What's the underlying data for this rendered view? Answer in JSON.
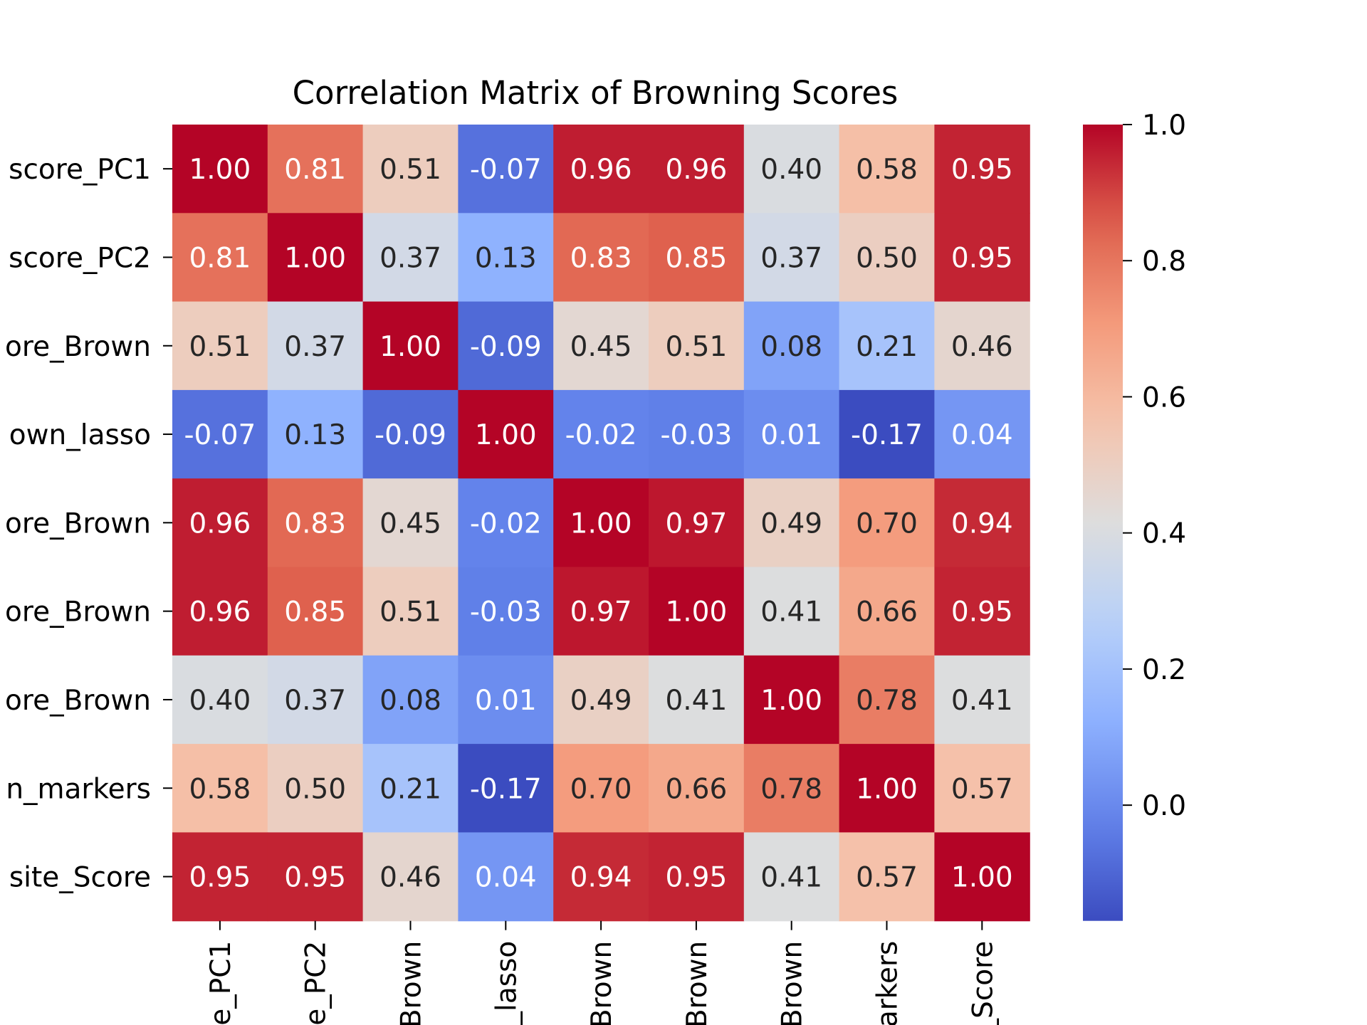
{
  "chart_data": {
    "type": "heatmap",
    "title": "Correlation Matrix of Browning Scores",
    "row_labels": [
      "score_PC1",
      "score_PC2",
      "ore_Brown",
      "own_lasso",
      "ore_Brown",
      "ore_Brown",
      "ore_Brown",
      "n_markers",
      "site_Score"
    ],
    "col_labels": [
      "e_PC1",
      "e_PC2",
      "Brown",
      "_lasso",
      "Brown",
      "Brown",
      "Brown",
      "arkers",
      "_Score"
    ],
    "values": [
      [
        1.0,
        0.81,
        0.51,
        -0.07,
        0.96,
        0.96,
        0.4,
        0.58,
        0.95
      ],
      [
        0.81,
        1.0,
        0.37,
        0.13,
        0.83,
        0.85,
        0.37,
        0.5,
        0.95
      ],
      [
        0.51,
        0.37,
        1.0,
        -0.09,
        0.45,
        0.51,
        0.08,
        0.21,
        0.46
      ],
      [
        -0.07,
        0.13,
        -0.09,
        1.0,
        -0.02,
        -0.03,
        0.01,
        -0.17,
        0.04
      ],
      [
        0.96,
        0.83,
        0.45,
        -0.02,
        1.0,
        0.97,
        0.49,
        0.7,
        0.94
      ],
      [
        0.96,
        0.85,
        0.51,
        -0.03,
        0.97,
        1.0,
        0.41,
        0.66,
        0.95
      ],
      [
        0.4,
        0.37,
        0.08,
        0.01,
        0.49,
        0.41,
        1.0,
        0.78,
        0.41
      ],
      [
        0.58,
        0.5,
        0.21,
        -0.17,
        0.7,
        0.66,
        0.78,
        1.0,
        0.57
      ],
      [
        0.95,
        0.95,
        0.46,
        0.04,
        0.94,
        0.95,
        0.41,
        0.57,
        1.0
      ]
    ],
    "colormap": "coolwarm",
    "vmin": -0.17,
    "vmax": 1.0,
    "colorbar": {
      "ticks": [
        0.0,
        0.2,
        0.4,
        0.6,
        0.8,
        1.0
      ],
      "tick_labels": [
        "0.0",
        "0.2",
        "0.4",
        "0.6",
        "0.8",
        "1.0"
      ]
    },
    "annotation_colors": {
      "dark": "#262626",
      "light": "#ffffff"
    }
  }
}
